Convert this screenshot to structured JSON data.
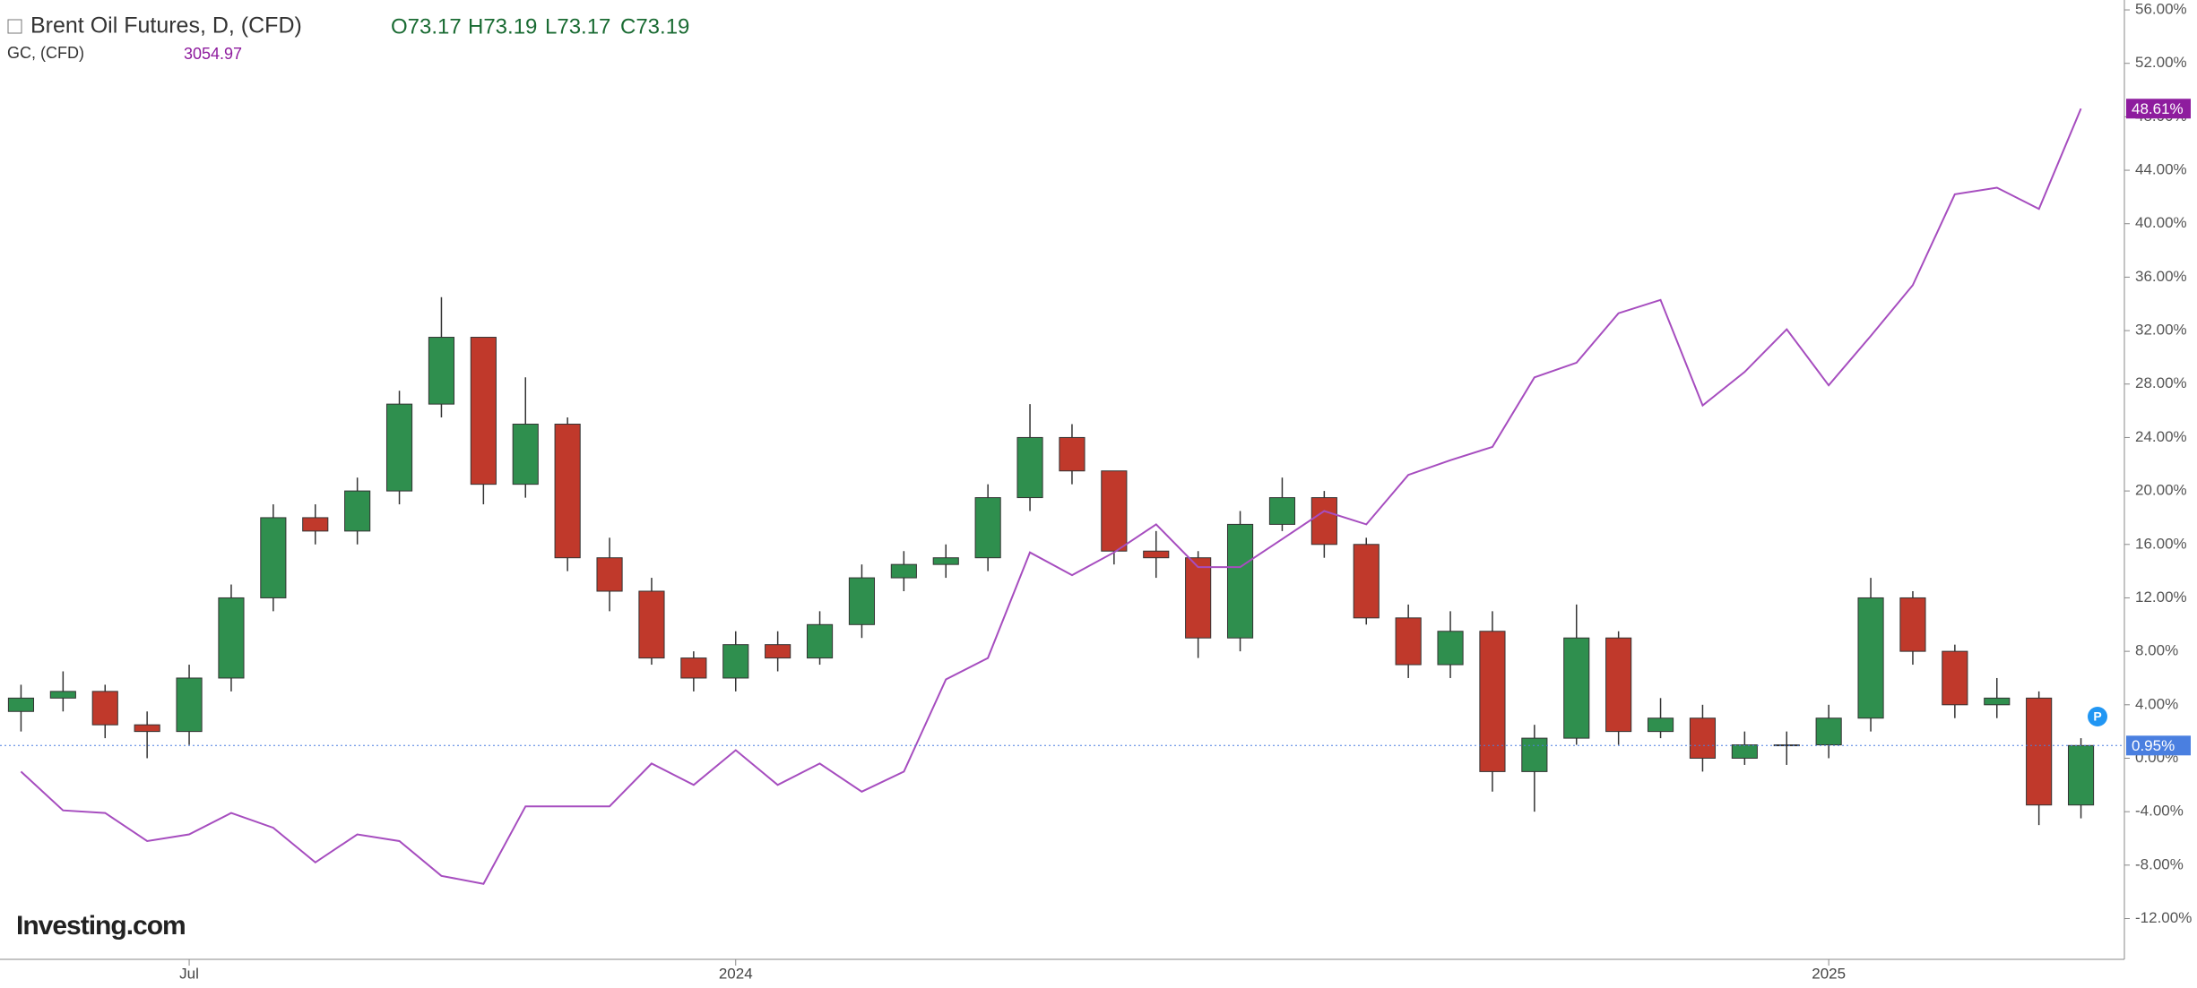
{
  "chart_data": {
    "type": "candlestick",
    "header": {
      "ohlc": [
        "O73.17",
        "H73.19",
        "L73.17",
        "C73.19"
      ],
      "compare_value": "3054.97"
    },
    "logo": "Investing.com",
    "categories": [
      null,
      null,
      null,
      null,
      "Jul",
      null,
      null,
      null,
      null,
      null,
      null,
      null,
      null,
      null,
      null,
      null,
      null,
      "2024",
      null,
      null,
      null,
      null,
      null,
      null,
      null,
      null,
      null,
      null,
      null,
      null,
      null,
      null,
      null,
      null,
      null,
      null,
      null,
      null,
      null,
      null,
      null,
      null,
      null,
      "2025",
      null,
      null,
      null,
      null,
      null,
      null
    ],
    "series": [
      {
        "name": "Brent Oil Futures, D, (CFD)",
        "type": "candlestick",
        "up_color": "#2f8f4e",
        "down_color": "#c0392b",
        "open": [
          3.5,
          4.5,
          5.0,
          2.5,
          2.0,
          6.0,
          12.0,
          18.0,
          17.0,
          20.0,
          26.5,
          31.5,
          20.5,
          25.0,
          15.0,
          12.5,
          7.5,
          6.0,
          8.5,
          7.5,
          10.0,
          13.5,
          14.5,
          15.0,
          19.5,
          24.0,
          21.5,
          15.5,
          15.0,
          9.0,
          17.5,
          19.5,
          16.0,
          10.5,
          7.0,
          9.5,
          -1.0,
          1.5,
          9.0,
          2.0,
          3.0,
          0.0,
          1.0,
          1.0,
          3.0,
          12.0,
          8.0,
          4.0,
          4.5,
          -3.5
        ],
        "high": [
          5.5,
          6.5,
          5.5,
          3.5,
          7,
          13,
          19,
          19,
          21,
          27.5,
          34.5,
          31.5,
          28.5,
          25.5,
          16.5,
          13.5,
          8,
          9.5,
          9.5,
          11,
          14.5,
          15.5,
          16,
          20.5,
          26.5,
          25,
          21.5,
          17,
          15.5,
          18.5,
          21,
          20,
          16.5,
          11.5,
          11,
          11,
          2.5,
          11.5,
          9.5,
          4.5,
          4,
          2,
          2,
          4,
          13.5,
          12.5,
          8.5,
          6,
          5,
          1.5
        ],
        "low": [
          2,
          3.5,
          1.5,
          0,
          1,
          5,
          11,
          16,
          16,
          19,
          25.5,
          19,
          19.5,
          14,
          11,
          7,
          5,
          5,
          6.5,
          7,
          9,
          12.5,
          13.5,
          14,
          18.5,
          20.5,
          14.5,
          13.5,
          7.5,
          8,
          17,
          15,
          10,
          6,
          6,
          -2.5,
          -4,
          1,
          1,
          1.5,
          -1,
          -0.5,
          -0.5,
          0,
          2,
          7,
          3,
          3,
          -5,
          -4.5
        ],
        "close": [
          4.5,
          5.0,
          2.5,
          2.0,
          6.0,
          12.0,
          18.0,
          17.0,
          20.0,
          26.5,
          31.5,
          20.5,
          25.0,
          15.0,
          12.5,
          7.5,
          6.0,
          8.5,
          7.5,
          10.0,
          13.5,
          14.5,
          15.0,
          19.5,
          24.0,
          21.5,
          15.5,
          15.0,
          9.0,
          17.5,
          19.5,
          16.0,
          10.5,
          7.0,
          9.5,
          -1.0,
          1.5,
          9.0,
          2.0,
          3.0,
          0.0,
          1.0,
          1.0,
          3.0,
          12.0,
          8.0,
          4.0,
          4.5,
          -3.5,
          0.95
        ]
      },
      {
        "name": "GC, (CFD)",
        "type": "line",
        "color": "#a64dbf",
        "values": [
          -1,
          -3.9,
          -4.1,
          -6.2,
          -5.7,
          -4.1,
          -5.2,
          -7.8,
          -5.7,
          -6.2,
          -8.8,
          -9.4,
          -3.6,
          -3.6,
          -3.6,
          -0.4,
          -2.0,
          0.6,
          -2.0,
          -0.4,
          -2.5,
          -1,
          5.9,
          7.5,
          15.4,
          13.7,
          15.4,
          17.5,
          14.3,
          14.3,
          16.4,
          18.5,
          17.5,
          21.2,
          22.3,
          23.3,
          28.5,
          29.6,
          33.3,
          34.3,
          26.4,
          28.9,
          32.1,
          27.9,
          31.6,
          35.4,
          42.2,
          42.7,
          41.1,
          48.61
        ]
      }
    ],
    "price_tags": [
      {
        "value": 0.95,
        "label": "0.95%",
        "color": "#4a7fe0"
      },
      {
        "value": 48.61,
        "label": "48.61%",
        "color": "#8e1c9e"
      }
    ],
    "ylim": [
      -15.05,
      56.74
    ],
    "yticks": [
      {
        "value": 56,
        "label": "56.00%"
      },
      {
        "value": 52,
        "label": "52.00%"
      },
      {
        "value": 48,
        "label": "48.00%"
      },
      {
        "value": 44,
        "label": "44.00%"
      },
      {
        "value": 40,
        "label": "40.00%"
      },
      {
        "value": 36,
        "label": "36.00%"
      },
      {
        "value": 32,
        "label": "32.00%"
      },
      {
        "value": 28,
        "label": "28.00%"
      },
      {
        "value": 24,
        "label": "24.00%"
      },
      {
        "value": 20,
        "label": "20.00%"
      },
      {
        "value": 16,
        "label": "16.00%"
      },
      {
        "value": 12,
        "label": "12.00%"
      },
      {
        "value": 8,
        "label": "8.00%"
      },
      {
        "value": 4,
        "label": "4.00%"
      },
      {
        "value": 0,
        "label": "0.00%"
      },
      {
        "value": -4,
        "label": "-4.00%"
      },
      {
        "value": -8,
        "label": "-8.00%"
      },
      {
        "value": -12,
        "label": "-12.00%"
      }
    ],
    "grid": false
  }
}
